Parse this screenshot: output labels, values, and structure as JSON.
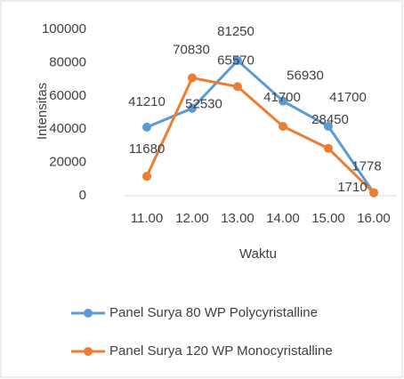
{
  "chart_data": {
    "type": "line",
    "categories": [
      "11.00",
      "12.00",
      "13.00",
      "14.00",
      "15.00",
      "16.00"
    ],
    "series": [
      {
        "name": "Panel Surya 80 WP Polycyristalline",
        "color": "#5b9bd5",
        "values": [
          41210,
          52530,
          81250,
          56930,
          41700,
          1778
        ]
      },
      {
        "name": "Panel Surya 120 WP Monocyristalline",
        "color": "#ed7d31",
        "values": [
          11680,
          70830,
          65570,
          41700,
          28450,
          1710
        ]
      }
    ],
    "xlabel": "Waktu",
    "ylabel": "Intensitas",
    "ylim": [
      0,
      100000
    ],
    "yticks": [
      0,
      20000,
      40000,
      60000,
      80000,
      100000
    ],
    "grid": false,
    "legend": "bottom"
  }
}
